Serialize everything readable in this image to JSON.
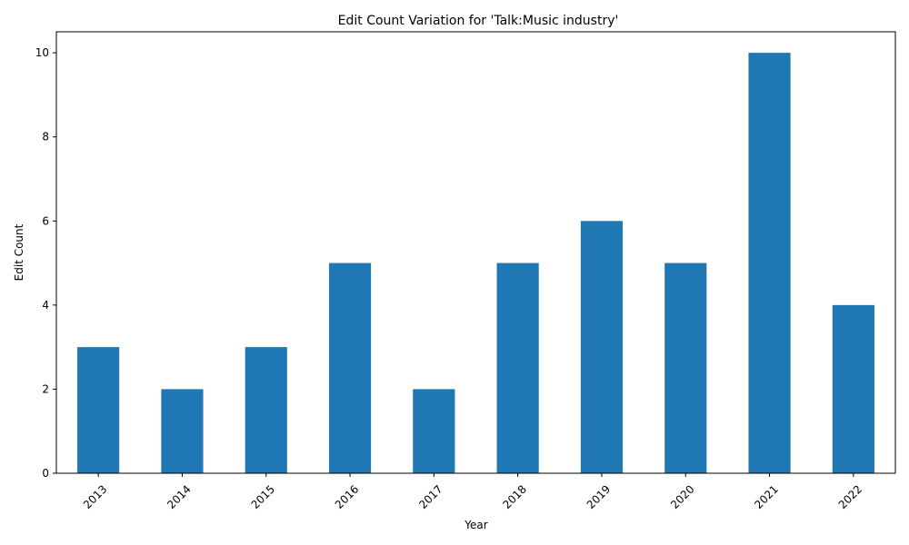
{
  "chart_data": {
    "type": "bar",
    "title": "Edit Count Variation for 'Talk:Music industry'",
    "xlabel": "Year",
    "ylabel": "Edit Count",
    "categories": [
      "2013",
      "2014",
      "2015",
      "2016",
      "2017",
      "2018",
      "2019",
      "2020",
      "2021",
      "2022"
    ],
    "values": [
      3,
      2,
      3,
      5,
      2,
      5,
      6,
      5,
      10,
      4
    ],
    "ylim": [
      0,
      10.5
    ],
    "yticks": [
      0,
      2,
      4,
      6,
      8,
      10
    ],
    "grid": false,
    "legend": "none",
    "bar_color": "#1f77b4"
  }
}
